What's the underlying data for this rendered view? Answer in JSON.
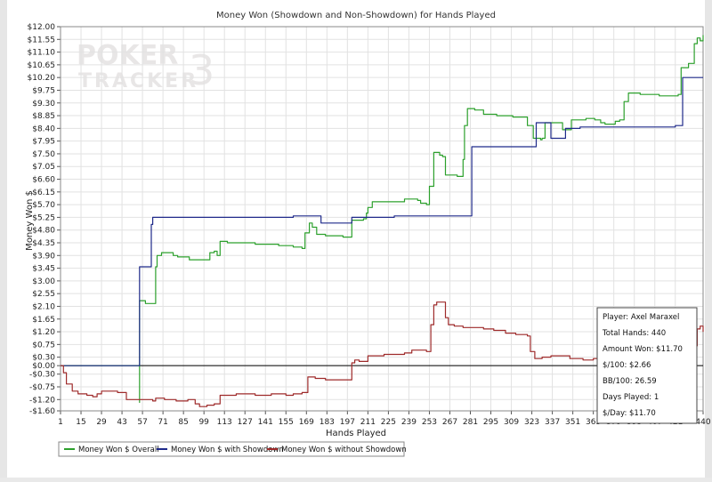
{
  "chart_data": {
    "type": "line",
    "title": "Money Won (Showdown and Non-Showdown) for Hands Played",
    "xlabel": "Hands Played",
    "ylabel": "Money Won $",
    "xlim": [
      1,
      440
    ],
    "ylim": [
      -1.6,
      12.0
    ],
    "x_ticks": [
      1,
      15,
      29,
      43,
      57,
      71,
      85,
      99,
      113,
      127,
      141,
      155,
      169,
      183,
      197,
      211,
      225,
      239,
      253,
      267,
      281,
      295,
      309,
      323,
      337,
      351,
      365,
      379,
      393,
      407,
      421,
      440
    ],
    "y_ticks": [
      -1.6,
      -1.2,
      -0.75,
      -0.3,
      0.0,
      0.3,
      0.75,
      1.2,
      1.65,
      2.1,
      2.55,
      3.0,
      3.45,
      3.9,
      4.35,
      4.8,
      5.25,
      5.7,
      6.15,
      6.6,
      7.05,
      7.5,
      7.95,
      8.4,
      8.85,
      9.3,
      9.75,
      10.2,
      10.65,
      11.1,
      11.55,
      12.0
    ],
    "y_tick_labels": [
      "-$1.60",
      "-$1.20",
      "-$0.75",
      "-$0.30",
      "$0.00",
      "$0.30",
      "$0.75",
      "$1.20",
      "$1.65",
      "$2.10",
      "$2.55",
      "$3.00",
      "$3.45",
      "$3.90",
      "$4.35",
      "$4.80",
      "$5.25",
      "$5.70",
      "$6.15",
      "$6.60",
      "$7.05",
      "$7.50",
      "$7.95",
      "$8.40",
      "$8.85",
      "$9.30",
      "$9.75",
      "$10.20",
      "$10.65",
      "$11.10",
      "$11.55",
      "$12.00"
    ],
    "grid": true,
    "legend_position": "bottom-left",
    "series": [
      {
        "name": "Money Won $ Overall",
        "color": "#2ca02c",
        "points": [
          [
            1,
            0
          ],
          [
            54,
            0
          ],
          [
            55,
            -1.3
          ],
          [
            55,
            2.3
          ],
          [
            57,
            2.3
          ],
          [
            59,
            2.2
          ],
          [
            64,
            2.2
          ],
          [
            66,
            3.5
          ],
          [
            67,
            3.9
          ],
          [
            70,
            4.0
          ],
          [
            76,
            4.0
          ],
          [
            78,
            3.9
          ],
          [
            81,
            3.85
          ],
          [
            87,
            3.85
          ],
          [
            89,
            3.75
          ],
          [
            97,
            3.75
          ],
          [
            101,
            3.75
          ],
          [
            103,
            4.0
          ],
          [
            106,
            4.05
          ],
          [
            108,
            3.9
          ],
          [
            110,
            4.4
          ],
          [
            115,
            4.35
          ],
          [
            122,
            4.35
          ],
          [
            134,
            4.3
          ],
          [
            150,
            4.25
          ],
          [
            160,
            4.2
          ],
          [
            166,
            4.15
          ],
          [
            168,
            4.7
          ],
          [
            171,
            5.05
          ],
          [
            173,
            4.9
          ],
          [
            176,
            4.65
          ],
          [
            182,
            4.6
          ],
          [
            190,
            4.6
          ],
          [
            194,
            4.55
          ],
          [
            199,
            4.55
          ],
          [
            200,
            5.15
          ],
          [
            208,
            5.2
          ],
          [
            210,
            5.4
          ],
          [
            211,
            5.6
          ],
          [
            214,
            5.8
          ],
          [
            228,
            5.8
          ],
          [
            234,
            5.8
          ],
          [
            236,
            5.9
          ],
          [
            245,
            5.85
          ],
          [
            247,
            5.75
          ],
          [
            251,
            5.7
          ],
          [
            253,
            6.35
          ],
          [
            256,
            7.55
          ],
          [
            260,
            7.45
          ],
          [
            262,
            7.4
          ],
          [
            264,
            6.75
          ],
          [
            272,
            6.7
          ],
          [
            275,
            6.7
          ],
          [
            276,
            7.3
          ],
          [
            277,
            8.5
          ],
          [
            279,
            9.1
          ],
          [
            284,
            9.05
          ],
          [
            290,
            8.9
          ],
          [
            299,
            8.85
          ],
          [
            310,
            8.8
          ],
          [
            318,
            8.8
          ],
          [
            320,
            8.5
          ],
          [
            324,
            8.05
          ],
          [
            329,
            8.0
          ],
          [
            330,
            8.05
          ],
          [
            332,
            8.6
          ],
          [
            338,
            8.6
          ],
          [
            344,
            8.35
          ],
          [
            347,
            8.35
          ],
          [
            350,
            8.7
          ],
          [
            360,
            8.75
          ],
          [
            366,
            8.7
          ],
          [
            370,
            8.6
          ],
          [
            373,
            8.55
          ],
          [
            380,
            8.65
          ],
          [
            383,
            8.7
          ],
          [
            386,
            9.35
          ],
          [
            389,
            9.65
          ],
          [
            397,
            9.6
          ],
          [
            404,
            9.6
          ],
          [
            410,
            9.55
          ],
          [
            419,
            9.55
          ],
          [
            423,
            9.6
          ],
          [
            425,
            10.55
          ],
          [
            430,
            10.7
          ],
          [
            434,
            11.4
          ],
          [
            436,
            11.6
          ],
          [
            438,
            11.5
          ],
          [
            440,
            11.7
          ]
        ]
      },
      {
        "name": "Money Won $ with Showdown",
        "color": "#1f2a8a",
        "points": [
          [
            1,
            0
          ],
          [
            54,
            0
          ],
          [
            55,
            0
          ],
          [
            55,
            3.5
          ],
          [
            62,
            3.5
          ],
          [
            63,
            5.0
          ],
          [
            64,
            5.25
          ],
          [
            100,
            5.25
          ],
          [
            150,
            5.25
          ],
          [
            160,
            5.3
          ],
          [
            177,
            5.3
          ],
          [
            179,
            5.05
          ],
          [
            198,
            5.05
          ],
          [
            200,
            5.25
          ],
          [
            229,
            5.3
          ],
          [
            280,
            5.3
          ],
          [
            282,
            7.75
          ],
          [
            323,
            7.75
          ],
          [
            325,
            7.75
          ],
          [
            326,
            8.6
          ],
          [
            335,
            8.6
          ],
          [
            336,
            8.05
          ],
          [
            345,
            8.05
          ],
          [
            346,
            8.4
          ],
          [
            356,
            8.45
          ],
          [
            421,
            8.5
          ],
          [
            426,
            10.2
          ],
          [
            440,
            10.2
          ]
        ]
      },
      {
        "name": "Money Won $ without Showdown",
        "color": "#9e2a2a",
        "points": [
          [
            1,
            0
          ],
          [
            3,
            -0.25
          ],
          [
            5,
            -0.65
          ],
          [
            9,
            -0.9
          ],
          [
            13,
            -1.0
          ],
          [
            19,
            -1.05
          ],
          [
            23,
            -1.1
          ],
          [
            26,
            -1.0
          ],
          [
            29,
            -0.9
          ],
          [
            35,
            -0.9
          ],
          [
            40,
            -0.95
          ],
          [
            44,
            -0.95
          ],
          [
            46,
            -1.2
          ],
          [
            55,
            -1.2
          ],
          [
            57,
            -1.2
          ],
          [
            64,
            -1.25
          ],
          [
            66,
            -1.15
          ],
          [
            72,
            -1.2
          ],
          [
            80,
            -1.25
          ],
          [
            85,
            -1.25
          ],
          [
            88,
            -1.2
          ],
          [
            93,
            -1.35
          ],
          [
            96,
            -1.45
          ],
          [
            101,
            -1.4
          ],
          [
            106,
            -1.35
          ],
          [
            110,
            -1.05
          ],
          [
            115,
            -1.05
          ],
          [
            121,
            -1.0
          ],
          [
            128,
            -1.0
          ],
          [
            134,
            -1.05
          ],
          [
            145,
            -1.0
          ],
          [
            155,
            -1.05
          ],
          [
            160,
            -1.0
          ],
          [
            163,
            -1.0
          ],
          [
            166,
            -0.95
          ],
          [
            170,
            -0.4
          ],
          [
            175,
            -0.45
          ],
          [
            182,
            -0.5
          ],
          [
            188,
            -0.5
          ],
          [
            195,
            -0.5
          ],
          [
            199,
            -0.5
          ],
          [
            200,
            0.1
          ],
          [
            202,
            0.2
          ],
          [
            205,
            0.15
          ],
          [
            209,
            0.15
          ],
          [
            211,
            0.35
          ],
          [
            216,
            0.35
          ],
          [
            222,
            0.4
          ],
          [
            229,
            0.4
          ],
          [
            236,
            0.45
          ],
          [
            241,
            0.55
          ],
          [
            248,
            0.55
          ],
          [
            251,
            0.5
          ],
          [
            254,
            1.45
          ],
          [
            256,
            2.15
          ],
          [
            258,
            2.25
          ],
          [
            262,
            2.25
          ],
          [
            264,
            1.7
          ],
          [
            266,
            1.45
          ],
          [
            270,
            1.4
          ],
          [
            276,
            1.35
          ],
          [
            284,
            1.35
          ],
          [
            290,
            1.3
          ],
          [
            297,
            1.25
          ],
          [
            305,
            1.15
          ],
          [
            312,
            1.1
          ],
          [
            320,
            1.05
          ],
          [
            322,
            0.5
          ],
          [
            325,
            0.25
          ],
          [
            330,
            0.3
          ],
          [
            336,
            0.35
          ],
          [
            344,
            0.35
          ],
          [
            349,
            0.25
          ],
          [
            354,
            0.25
          ],
          [
            358,
            0.2
          ],
          [
            365,
            0.25
          ],
          [
            375,
            0.3
          ],
          [
            385,
            0.5
          ],
          [
            395,
            0.5
          ],
          [
            405,
            0.55
          ],
          [
            415,
            0.55
          ],
          [
            421,
            0.6
          ],
          [
            430,
            0.7
          ],
          [
            436,
            1.3
          ],
          [
            438,
            1.4
          ],
          [
            440,
            1.2
          ]
        ]
      }
    ],
    "stats_box": {
      "lines": [
        "Player: Axel Maraxel",
        "Total Hands: 440",
        "Amount Won: $11.70",
        "$/100: $2.66",
        "BB/100: 26.59",
        "Days Played: 1",
        "$/Day: $11.70"
      ]
    },
    "watermark": {
      "line1": "POKER",
      "line2": "TRACKER",
      "mark": "3"
    }
  }
}
